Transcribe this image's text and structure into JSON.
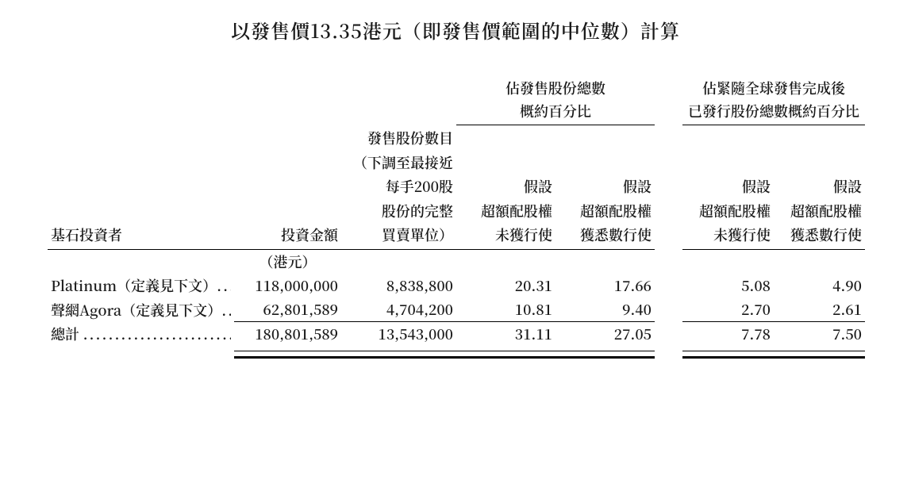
{
  "title": "以發售價13.35港元（即發售價範圍的中位數）計算",
  "group_headers": {
    "g1_line1": "佔發售股份總數",
    "g1_line2": "概約百分比",
    "g2_line1": "佔緊隨全球發售完成後",
    "g2_line2": "已發行股份總數概約百分比"
  },
  "col_headers": {
    "investor": "基石投資者",
    "amount": "投資金額",
    "shares_l1": "發售股份數目",
    "shares_l2": "（下調至最接近",
    "shares_l3": "每手200股",
    "shares_l4": "股份的完整",
    "shares_l5": "買賣單位）",
    "assume": "假設",
    "over_not_l1": "超額配股權",
    "over_not_l2": "未獲行使",
    "over_yes_l1": "超額配股權",
    "over_yes_l2": "獲悉數行使",
    "unit": "（港元）"
  },
  "rows": [
    {
      "label": "Platinum（定義見下文）",
      "amount": "118,000,000",
      "shares": "8,838,800",
      "p1": "20.31",
      "p2": "17.66",
      "p3": "5.08",
      "p4": "4.90"
    },
    {
      "label": "聲網Agora（定義見下文）",
      "amount": "62,801,589",
      "shares": "4,704,200",
      "p1": "10.81",
      "p2": "9.40",
      "p3": "2.70",
      "p4": "2.61"
    }
  ],
  "total": {
    "label": "總計",
    "amount": "180,801,589",
    "shares": "13,543,000",
    "p1": "31.11",
    "p2": "27.05",
    "p3": "7.78",
    "p4": "7.50"
  }
}
